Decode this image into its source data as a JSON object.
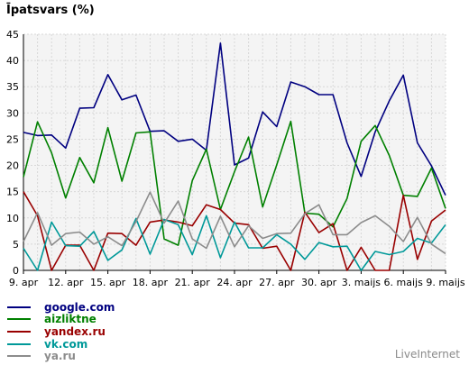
{
  "chart_data": {
    "type": "line",
    "title": "Īpatsvars (%)",
    "xlabel": "",
    "ylabel": "",
    "ylim": [
      0,
      45
    ],
    "y_ticks": [
      "0",
      "5",
      "10",
      "15",
      "20",
      "25",
      "30",
      "35",
      "40",
      "45"
    ],
    "x_tick_labels": [
      "9. apr",
      "12. apr",
      "15. apr",
      "18. apr",
      "21. apr",
      "24. apr",
      "27. apr",
      "30. apr",
      "3. maijs",
      "6. maijs",
      "9. maijs"
    ],
    "grid": true,
    "legend_position": "bottom-left",
    "series": [
      {
        "name": "google.com",
        "color": "#000080",
        "values": [
          26.3,
          25.7,
          25.8,
          23.3,
          30.9,
          31.0,
          37.3,
          32.5,
          33.4,
          26.5,
          26.6,
          24.6,
          25.0,
          22.9,
          43.3,
          20.1,
          21.4,
          30.2,
          27.4,
          35.9,
          35.0,
          33.5,
          33.5,
          24.3,
          17.9,
          26.4,
          32.3,
          37.2,
          24.3,
          19.9,
          14.3
        ]
      },
      {
        "name": "aizliktne",
        "color": "#008000",
        "values": [
          17.8,
          28.3,
          22.4,
          13.8,
          21.5,
          16.7,
          27.2,
          17.0,
          26.2,
          26.4,
          6.0,
          4.8,
          17.1,
          23.1,
          11.6,
          18.8,
          25.4,
          12.1,
          20.1,
          28.4,
          10.9,
          10.7,
          8.3,
          13.7,
          24.6,
          27.6,
          21.9,
          14.3,
          14.1,
          19.5,
          11.8
        ]
      },
      {
        "name": "yandex.ru",
        "color": "#990000",
        "values": [
          15.0,
          10.4,
          0.0,
          4.8,
          4.8,
          0.0,
          7.1,
          7.0,
          4.8,
          9.2,
          9.6,
          9.2,
          8.5,
          12.5,
          11.6,
          9.0,
          8.7,
          4.2,
          4.6,
          0.0,
          11.1,
          7.2,
          8.9,
          0.0,
          4.4,
          0.0,
          0.0,
          14.3,
          2.1,
          9.4,
          11.5
        ]
      },
      {
        "name": "vk.com",
        "color": "#009999",
        "values": [
          4.2,
          0.0,
          9.2,
          4.7,
          4.6,
          7.4,
          1.9,
          3.9,
          9.9,
          3.1,
          9.7,
          8.7,
          3.0,
          10.4,
          2.4,
          9.2,
          4.3,
          4.3,
          6.8,
          5.0,
          2.1,
          5.3,
          4.5,
          4.6,
          0.0,
          3.6,
          3.0,
          3.6,
          6.1,
          5.2,
          8.7
        ]
      },
      {
        "name": "ya.ru",
        "color": "#8c8c8c",
        "values": [
          5.5,
          11.0,
          4.8,
          7.0,
          7.3,
          5.0,
          6.4,
          4.7,
          9.3,
          14.9,
          9.0,
          13.2,
          6.0,
          4.2,
          10.3,
          4.5,
          8.5,
          6.1,
          7.0,
          7.1,
          10.8,
          12.5,
          6.8,
          6.8,
          9.1,
          10.4,
          8.4,
          5.5,
          10.1,
          5.0,
          3.2
        ]
      }
    ]
  },
  "watermark": "LiveInternet"
}
